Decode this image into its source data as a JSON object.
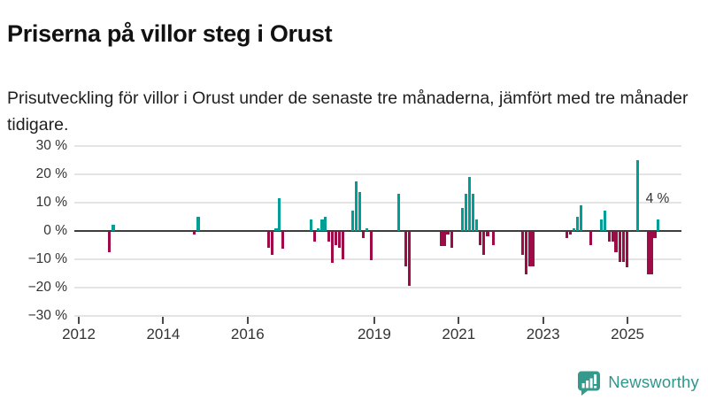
{
  "header": {
    "title": "Priserna på villor steg i Orust",
    "subtitle": "Prisutveckling för villor i Orust under de senaste tre månaderna, jämfört med tre månader tidigare."
  },
  "footer": {
    "brand": "Newsworthy",
    "brand_color": "#2f968a",
    "logo_icon": "bar-chart-speech-bubble"
  },
  "chart_data": {
    "type": "bar",
    "title": "Priserna på villor steg i Orust",
    "xlabel": "",
    "ylabel": "",
    "grid": true,
    "legend": "none",
    "unit": "%",
    "colors": {
      "positive": "#009E97",
      "negative": "#9E0C48",
      "zero_line": "#3d3d3d",
      "gridline": "#e4e4e4",
      "axis_text": "#333333"
    },
    "y_axis": {
      "range": [
        -30,
        30
      ],
      "ticks": [
        {
          "v": 30,
          "label": "30 %"
        },
        {
          "v": 20,
          "label": "20 %"
        },
        {
          "v": 10,
          "label": "10 %"
        },
        {
          "v": 0,
          "label": "0 %"
        },
        {
          "v": -10,
          "label": "−10 %"
        },
        {
          "v": -20,
          "label": "−20 %"
        },
        {
          "v": -30,
          "label": "−30 %"
        }
      ]
    },
    "x_axis": {
      "range": [
        2011.9,
        2026.3
      ],
      "ticks": [
        {
          "v": 2012,
          "label": "2012"
        },
        {
          "v": 2014,
          "label": "2014"
        },
        {
          "v": 2016,
          "label": "2016"
        },
        {
          "v": 2019,
          "label": "2019"
        },
        {
          "v": 2021,
          "label": "2021"
        },
        {
          "v": 2023,
          "label": "2023"
        },
        {
          "v": 2025,
          "label": "2025"
        }
      ]
    },
    "annotation": {
      "text": "4 %",
      "x": 2025.71,
      "y": 11.3
    },
    "points": [
      {
        "x": 2012.72,
        "v": -7
      },
      {
        "x": 2012.82,
        "v": 2
      },
      {
        "x": 2014.74,
        "v": -1
      },
      {
        "x": 2014.83,
        "v": 5
      },
      {
        "x": 2016.5,
        "v": -5.5
      },
      {
        "x": 2016.58,
        "v": -8
      },
      {
        "x": 2016.67,
        "v": 1
      },
      {
        "x": 2016.75,
        "v": 11.5
      },
      {
        "x": 2016.83,
        "v": -6
      },
      {
        "x": 2017.5,
        "v": 4
      },
      {
        "x": 2017.59,
        "v": -3.5
      },
      {
        "x": 2017.67,
        "v": 1
      },
      {
        "x": 2017.76,
        "v": 4
      },
      {
        "x": 2017.84,
        "v": 5
      },
      {
        "x": 2017.92,
        "v": -3.5
      },
      {
        "x": 2018.01,
        "v": -11
      },
      {
        "x": 2018.09,
        "v": -4.5
      },
      {
        "x": 2018.17,
        "v": -5.5
      },
      {
        "x": 2018.26,
        "v": -9.5
      },
      {
        "x": 2018.49,
        "v": 7
      },
      {
        "x": 2018.57,
        "v": 17.5
      },
      {
        "x": 2018.66,
        "v": 13.5
      },
      {
        "x": 2018.74,
        "v": -2
      },
      {
        "x": 2018.82,
        "v": 1
      },
      {
        "x": 2018.93,
        "v": -10
      },
      {
        "x": 2019.58,
        "v": 13
      },
      {
        "x": 2019.75,
        "v": -12
      },
      {
        "x": 2019.83,
        "v": -19
      },
      {
        "x": 2020.59,
        "v": -5
      },
      {
        "x": 2020.67,
        "v": -5
      },
      {
        "x": 2020.74,
        "v": -1
      },
      {
        "x": 2020.84,
        "v": -5.5
      },
      {
        "x": 2021.09,
        "v": 8
      },
      {
        "x": 2021.17,
        "v": 13
      },
      {
        "x": 2021.26,
        "v": 19
      },
      {
        "x": 2021.34,
        "v": 13
      },
      {
        "x": 2021.42,
        "v": 4
      },
      {
        "x": 2021.51,
        "v": -4.5
      },
      {
        "x": 2021.59,
        "v": -8
      },
      {
        "x": 2021.68,
        "v": -1.5
      },
      {
        "x": 2021.82,
        "v": -4.5
      },
      {
        "x": 2022.51,
        "v": -8
      },
      {
        "x": 2022.6,
        "v": -15
      },
      {
        "x": 2022.68,
        "v": -12
      },
      {
        "x": 2022.76,
        "v": -12
      },
      {
        "x": 2023.56,
        "v": -2
      },
      {
        "x": 2023.65,
        "v": -1
      },
      {
        "x": 2023.73,
        "v": 1
      },
      {
        "x": 2023.81,
        "v": 5
      },
      {
        "x": 2023.9,
        "v": 9
      },
      {
        "x": 2024.13,
        "v": -4.5
      },
      {
        "x": 2024.38,
        "v": 4
      },
      {
        "x": 2024.46,
        "v": 7
      },
      {
        "x": 2024.57,
        "v": -3.5
      },
      {
        "x": 2024.65,
        "v": -3.5
      },
      {
        "x": 2024.73,
        "v": -7
      },
      {
        "x": 2024.82,
        "v": -10.5
      },
      {
        "x": 2024.9,
        "v": -10.5
      },
      {
        "x": 2024.99,
        "v": -12.5
      },
      {
        "x": 2025.24,
        "v": 25
      },
      {
        "x": 2025.49,
        "v": -15
      },
      {
        "x": 2025.57,
        "v": -15
      },
      {
        "x": 2025.65,
        "v": -2
      },
      {
        "x": 2025.72,
        "v": 4
      }
    ]
  }
}
